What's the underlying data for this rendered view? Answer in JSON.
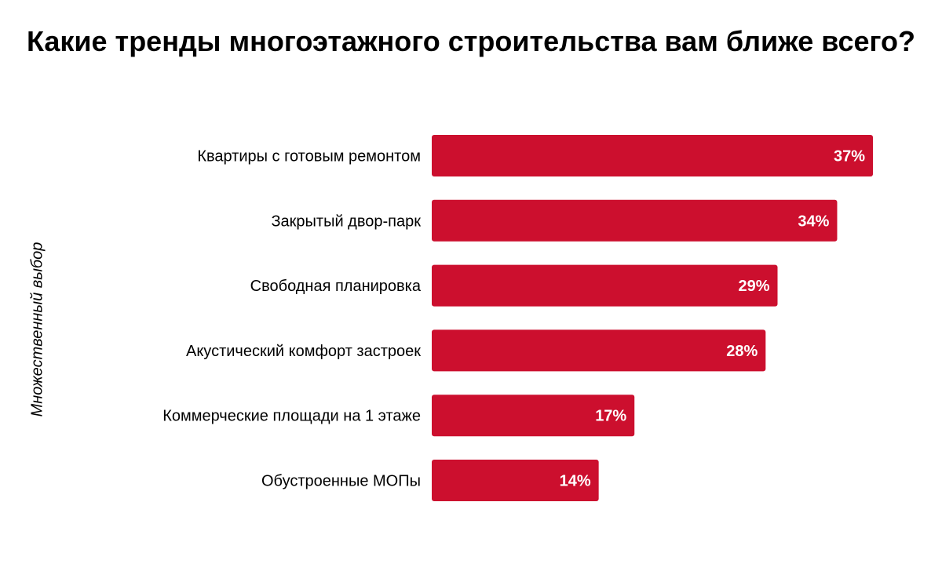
{
  "chart_data": {
    "type": "bar",
    "orientation": "horizontal",
    "title": "Какие тренды многоэтажного строительства вам ближе всего?",
    "ylabel": "Множественный выбор",
    "xlabel": "",
    "categories": [
      "Квартиры с готовым ремонтом",
      "Закрытый двор-парк",
      "Свободная планировка",
      "Акустический комфорт застроек",
      "Коммерческие площади на 1 этаже",
      "Обустроенные МОПы"
    ],
    "values": [
      37,
      34,
      29,
      28,
      17,
      14
    ],
    "data_labels": [
      "37%",
      "34%",
      "29%",
      "28%",
      "17%",
      "14%"
    ],
    "unit": "%",
    "grid": false,
    "legend": "none",
    "bar_color": "#cc0f2e",
    "label_color": "#ffffff"
  }
}
